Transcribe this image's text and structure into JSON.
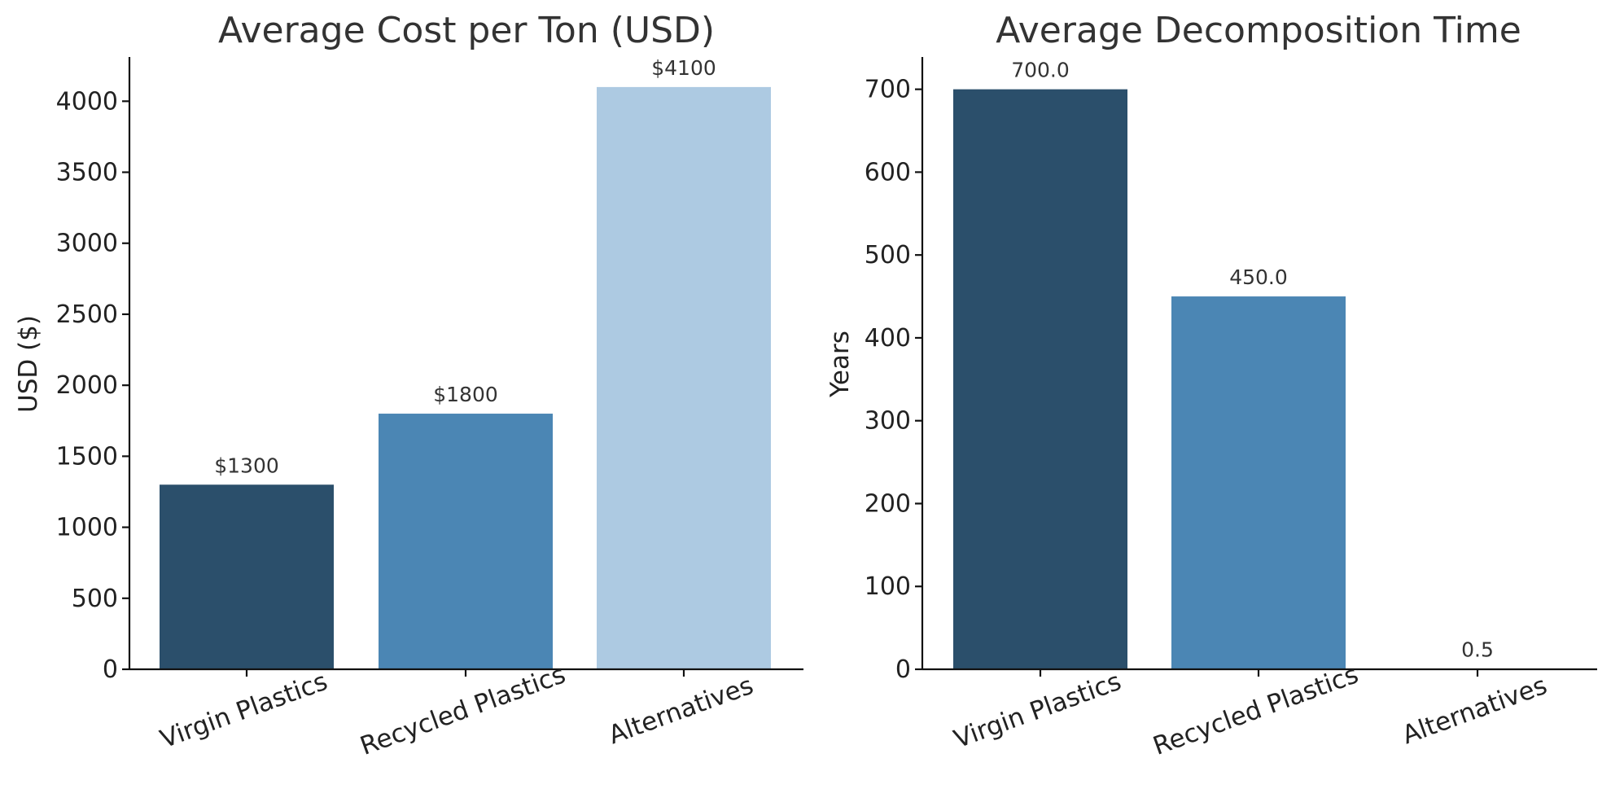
{
  "colors": {
    "virgin": "#2b4f6b",
    "recycled": "#4b86b4",
    "alternatives": "#adcae2"
  },
  "chart_data": [
    {
      "type": "bar",
      "title": "Average Cost per Ton (USD)",
      "xlabel": "",
      "ylabel": "USD ($)",
      "categories": [
        "Virgin Plastics",
        "Recycled Plastics",
        "Alternatives"
      ],
      "values": [
        1300,
        1800,
        4100
      ],
      "data_labels": [
        "$1300",
        "$1800",
        "$4100"
      ],
      "ylim": [
        0,
        4300
      ],
      "yticks": [
        0,
        500,
        1000,
        1500,
        2000,
        2500,
        3000,
        3500,
        4000
      ],
      "grid": false
    },
    {
      "type": "bar",
      "title": "Average Decomposition Time",
      "xlabel": "",
      "ylabel": "Years",
      "categories": [
        "Virgin Plastics",
        "Recycled Plastics",
        "Alternatives"
      ],
      "values": [
        700,
        450,
        0.5
      ],
      "data_labels": [
        "700.0",
        "450.0",
        "0.5"
      ],
      "ylim": [
        0,
        700
      ],
      "yticks": [
        0,
        100,
        200,
        300,
        400,
        500,
        600,
        700
      ],
      "grid": false
    }
  ]
}
